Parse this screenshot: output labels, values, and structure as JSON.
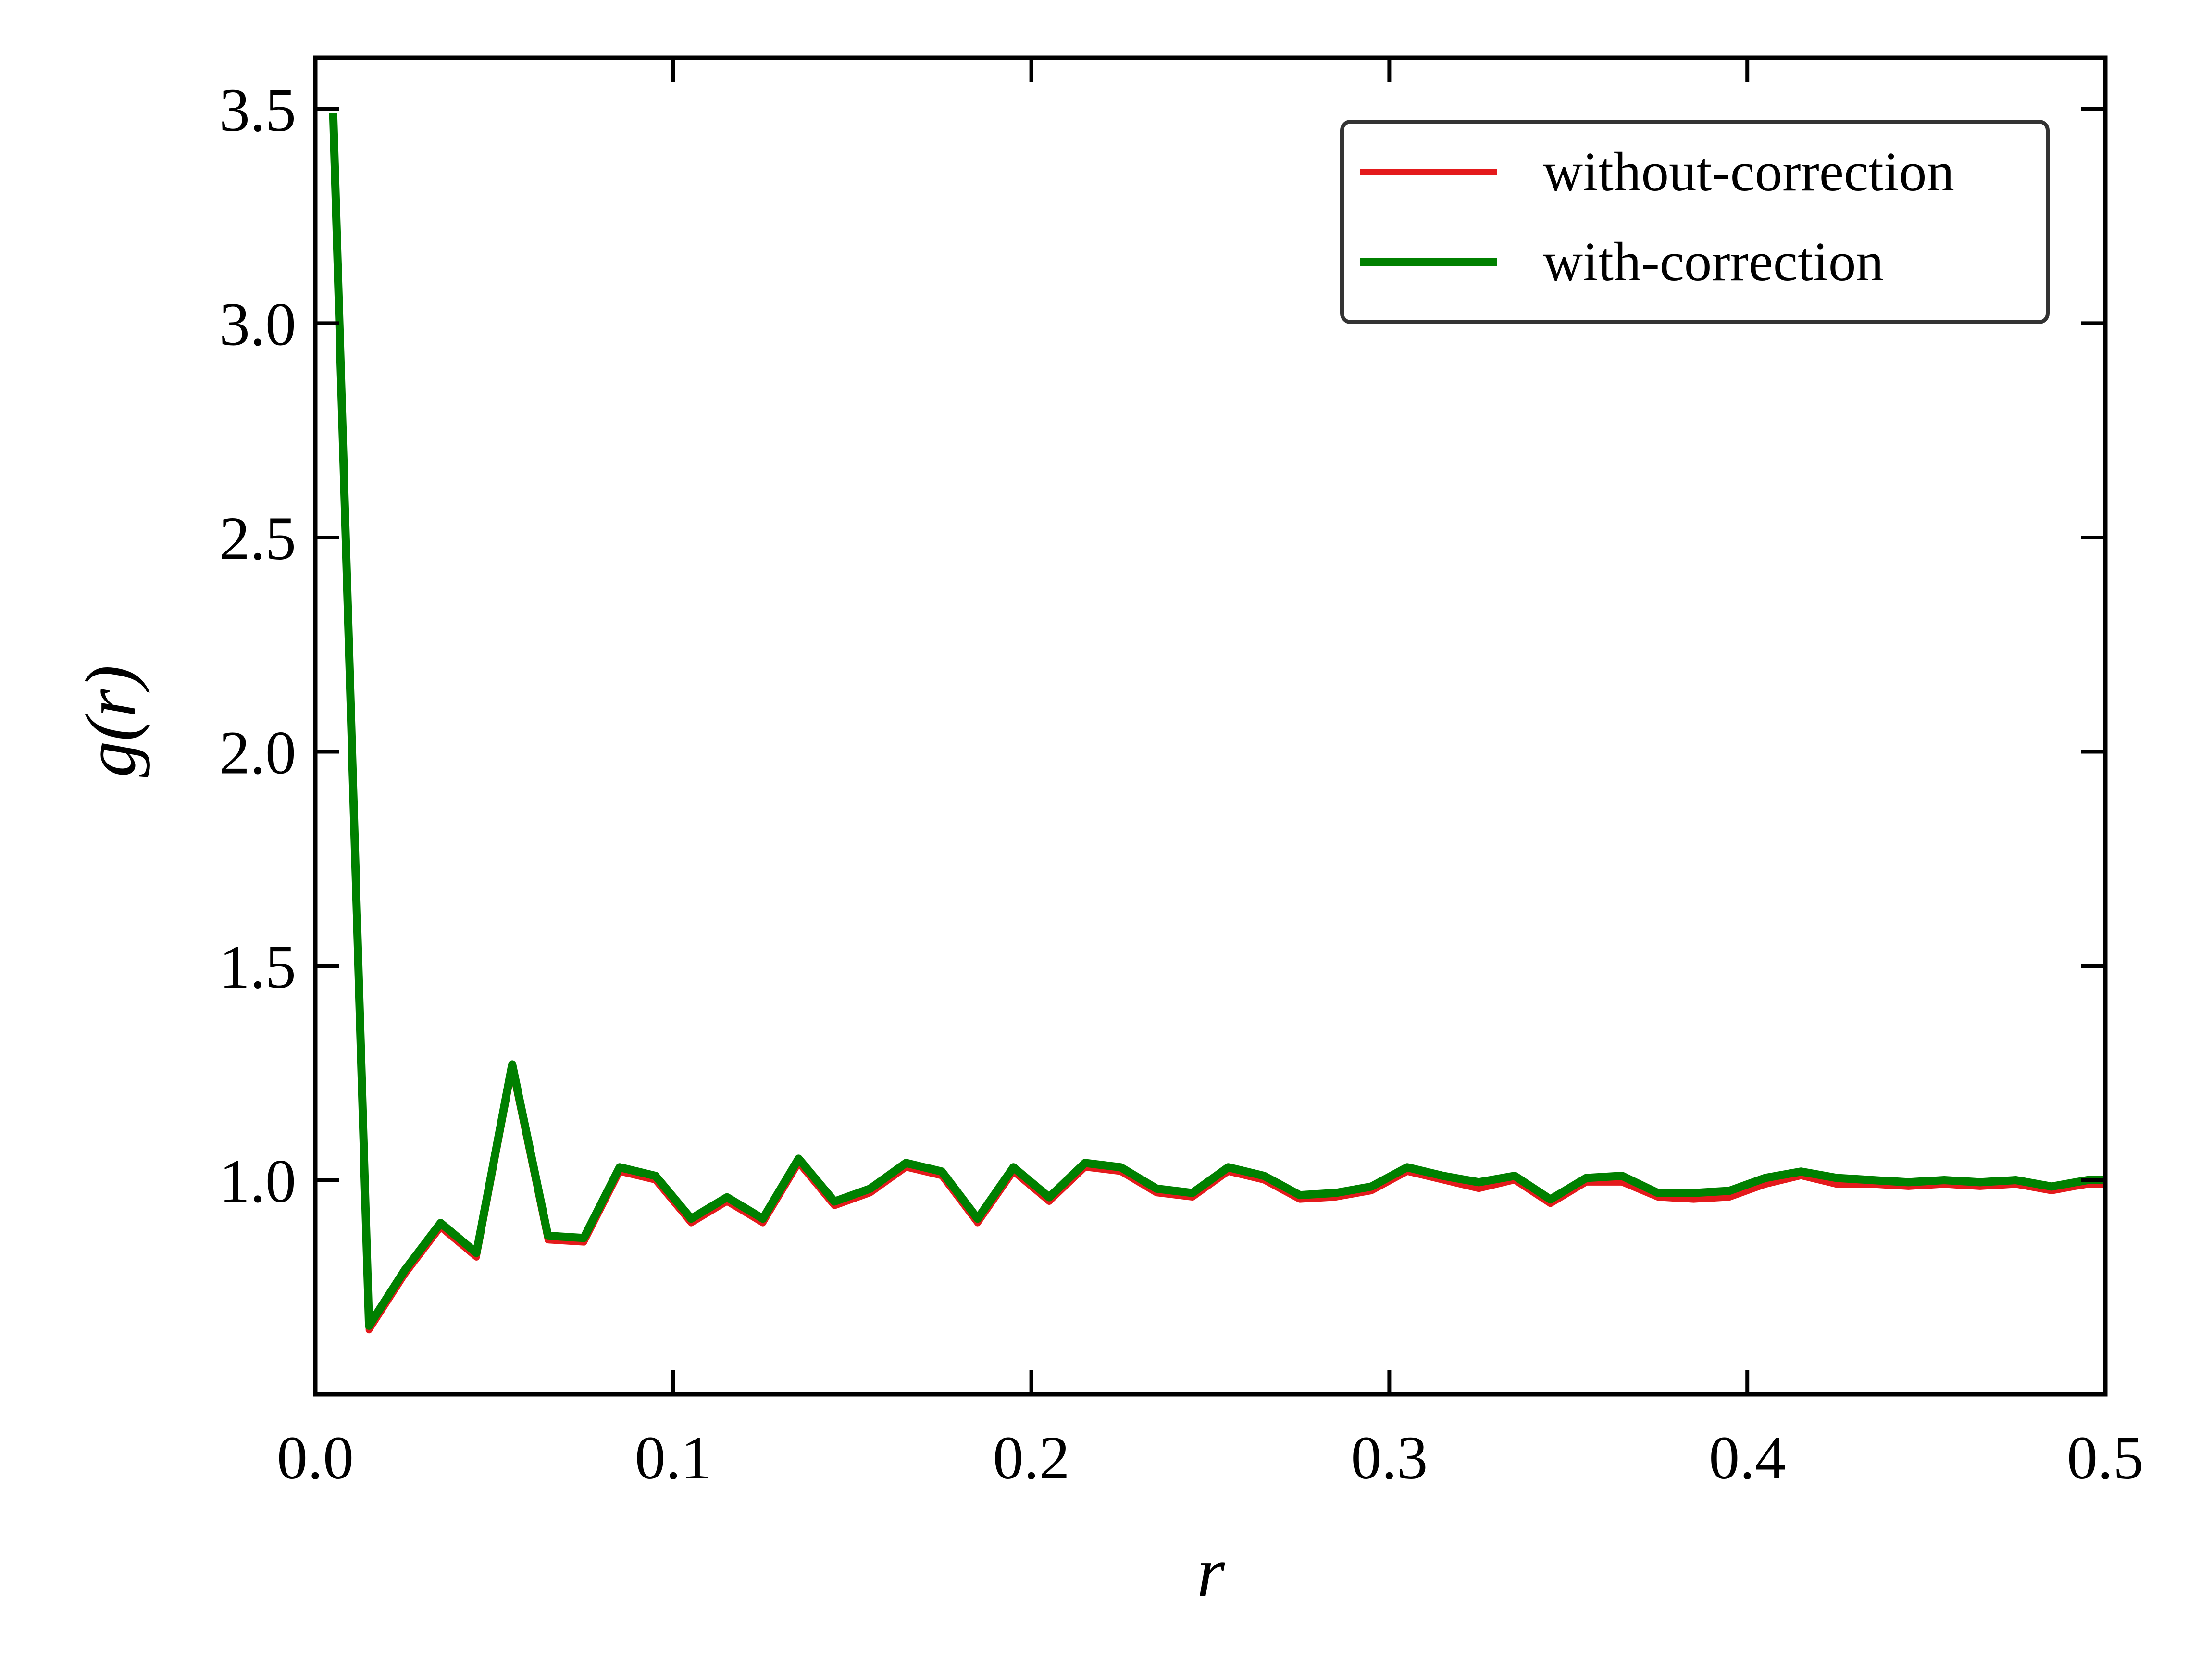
{
  "chart_data": {
    "type": "line",
    "title": "",
    "xlabel": "r",
    "ylabel": "g(r)",
    "xlim": [
      0.0,
      0.5
    ],
    "ylim": [
      0.5,
      3.62
    ],
    "xticks": [
      0.0,
      0.1,
      0.2,
      0.3,
      0.4,
      0.5
    ],
    "xtick_labels": [
      "0.0",
      "0.1",
      "0.2",
      "0.3",
      "0.4",
      "0.5"
    ],
    "yticks": [
      1.0,
      1.5,
      2.0,
      2.5,
      3.0,
      3.5
    ],
    "ytick_labels": [
      "1.0",
      "1.5",
      "2.0",
      "2.5",
      "3.0",
      "3.5"
    ],
    "grid": false,
    "legend_position": "top-right",
    "x": [
      0.005,
      0.015,
      0.025,
      0.035,
      0.045,
      0.055,
      0.065,
      0.075,
      0.085,
      0.095,
      0.105,
      0.115,
      0.125,
      0.135,
      0.145,
      0.155,
      0.165,
      0.175,
      0.185,
      0.195,
      0.205,
      0.215,
      0.225,
      0.235,
      0.245,
      0.255,
      0.265,
      0.275,
      0.285,
      0.295,
      0.305,
      0.315,
      0.325,
      0.335,
      0.345,
      0.355,
      0.365,
      0.375,
      0.385,
      0.395,
      0.405,
      0.415,
      0.425,
      0.435,
      0.445,
      0.455,
      0.465,
      0.475,
      0.485,
      0.495,
      0.5
    ],
    "series": [
      {
        "name": "without-correction",
        "color": "#e41a1c",
        "values": [
          3.48,
          0.65,
          0.78,
          0.89,
          0.82,
          1.26,
          0.86,
          0.855,
          1.02,
          1.0,
          0.9,
          0.95,
          0.9,
          1.04,
          0.94,
          0.97,
          1.03,
          1.01,
          0.9,
          1.02,
          0.95,
          1.03,
          1.02,
          0.97,
          0.96,
          1.02,
          1.0,
          0.955,
          0.96,
          0.975,
          1.02,
          1.0,
          0.98,
          1.0,
          0.945,
          0.995,
          0.995,
          0.96,
          0.955,
          0.96,
          0.99,
          1.01,
          0.99,
          0.99,
          0.985,
          0.99,
          0.985,
          0.99,
          0.975,
          0.99,
          0.99
        ]
      },
      {
        "name": "with-correction",
        "color": "#008000",
        "values": [
          3.49,
          0.66,
          0.79,
          0.9,
          0.83,
          1.27,
          0.87,
          0.865,
          1.03,
          1.01,
          0.91,
          0.96,
          0.91,
          1.05,
          0.95,
          0.98,
          1.04,
          1.02,
          0.91,
          1.03,
          0.96,
          1.04,
          1.03,
          0.98,
          0.97,
          1.03,
          1.01,
          0.965,
          0.97,
          0.985,
          1.03,
          1.01,
          0.995,
          1.01,
          0.955,
          1.005,
          1.01,
          0.97,
          0.97,
          0.975,
          1.005,
          1.02,
          1.005,
          1.0,
          0.995,
          1.0,
          0.995,
          1.0,
          0.985,
          1.0,
          1.0
        ]
      }
    ]
  }
}
